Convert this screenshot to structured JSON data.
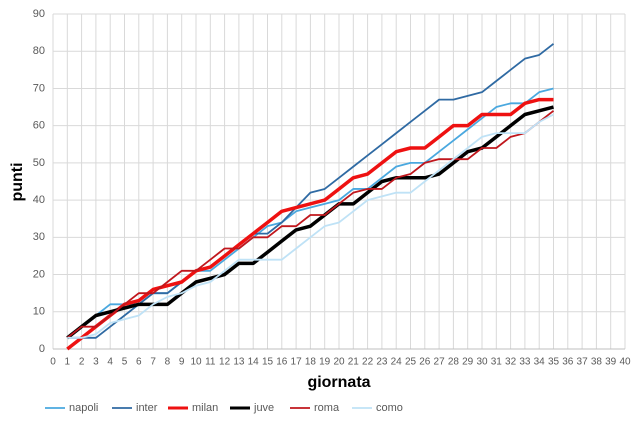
{
  "chart_data": {
    "type": "line",
    "x_label": "giornata",
    "y_label": "punti",
    "x": [
      1,
      2,
      3,
      4,
      5,
      6,
      7,
      8,
      9,
      10,
      11,
      12,
      13,
      14,
      15,
      16,
      17,
      18,
      19,
      20,
      21,
      22,
      23,
      24,
      25,
      26,
      27,
      28,
      29,
      30,
      31,
      32,
      33,
      34,
      35
    ],
    "series": [
      {
        "name": "napoli",
        "color": "#4aa8df",
        "line_width": 1.8,
        "values": [
          3,
          6,
          9,
          12,
          12,
          12,
          15,
          15,
          18,
          21,
          21,
          24,
          27,
          30,
          33,
          34,
          37,
          38,
          39,
          40,
          43,
          43,
          46,
          49,
          50,
          50,
          53,
          56,
          59,
          62,
          65,
          66,
          66,
          69,
          70
        ]
      },
      {
        "name": "inter",
        "color": "#2f6aa3",
        "line_width": 1.8,
        "values": [
          3,
          3,
          3,
          6,
          9,
          12,
          15,
          15,
          18,
          21,
          22,
          25,
          28,
          31,
          31,
          34,
          38,
          42,
          43,
          46,
          49,
          52,
          55,
          58,
          61,
          64,
          67,
          67,
          68,
          69,
          72,
          75,
          78,
          79,
          82
        ]
      },
      {
        "name": "milan",
        "color": "#ee1111",
        "line_width": 3.5,
        "values": [
          0,
          3,
          6,
          9,
          12,
          13,
          16,
          17,
          18,
          21,
          22,
          25,
          28,
          31,
          34,
          37,
          38,
          39,
          40,
          43,
          46,
          47,
          50,
          53,
          54,
          54,
          57,
          60,
          60,
          63,
          63,
          63,
          66,
          67,
          67
        ]
      },
      {
        "name": "juve",
        "color": "#000000",
        "line_width": 3.5,
        "values": [
          3,
          6,
          9,
          10,
          11,
          12,
          12,
          12,
          15,
          18,
          19,
          20,
          23,
          23,
          26,
          29,
          32,
          33,
          36,
          39,
          39,
          42,
          45,
          46,
          46,
          46,
          47,
          50,
          53,
          54,
          57,
          60,
          63,
          64,
          65
        ]
      },
      {
        "name": "roma",
        "color": "#c0171d",
        "line_width": 1.8,
        "values": [
          3,
          6,
          6,
          9,
          12,
          15,
          15,
          18,
          21,
          21,
          24,
          27,
          27,
          30,
          30,
          33,
          33,
          36,
          36,
          39,
          42,
          43,
          43,
          46,
          47,
          50,
          51,
          51,
          51,
          54,
          54,
          57,
          58,
          61,
          64
        ]
      },
      {
        "name": "como",
        "color": "#bfe2f6",
        "line_width": 1.8,
        "values": [
          3,
          3,
          4,
          7,
          8,
          9,
          12,
          14,
          15,
          17,
          18,
          21,
          24,
          24,
          24,
          24,
          27,
          30,
          33,
          34,
          37,
          40,
          41,
          42,
          42,
          45,
          48,
          51,
          54,
          57,
          58,
          58,
          58,
          61,
          63
        ]
      }
    ],
    "xlim": [
      0,
      40
    ],
    "xticks": [
      0,
      1,
      2,
      3,
      4,
      5,
      6,
      7,
      8,
      9,
      10,
      11,
      12,
      13,
      14,
      15,
      16,
      17,
      18,
      19,
      20,
      21,
      22,
      23,
      24,
      25,
      26,
      27,
      28,
      29,
      30,
      31,
      32,
      33,
      34,
      35,
      36,
      37,
      38,
      39,
      40
    ],
    "ylim": [
      0,
      90
    ],
    "yticks": [
      0,
      10,
      20,
      30,
      40,
      50,
      60,
      70,
      80,
      90
    ],
    "grid": true,
    "legend": "bottom"
  }
}
